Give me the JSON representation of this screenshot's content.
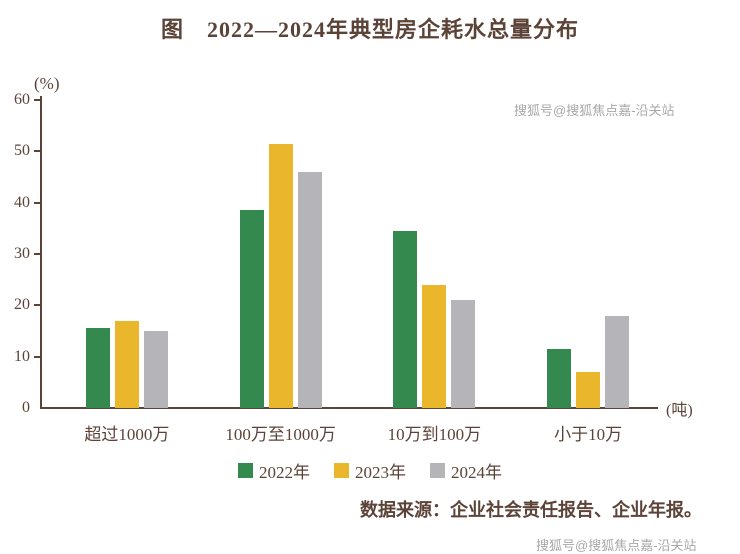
{
  "title": "图　2022—2024年典型房企耗水总量分布",
  "chart_data": {
    "type": "bar",
    "categories": [
      "超过1000万",
      "100万至1000万",
      "10万到100万",
      "小于10万"
    ],
    "series": [
      {
        "name": "2022年",
        "color": "#348a4e",
        "values": [
          15.5,
          38.5,
          34.5,
          11.5
        ]
      },
      {
        "name": "2023年",
        "color": "#eab62c",
        "values": [
          17,
          51.5,
          24,
          7
        ]
      },
      {
        "name": "2024年",
        "color": "#b5b4b8",
        "values": [
          15,
          46,
          21,
          18
        ]
      }
    ],
    "title": "图　2022—2024年典型房企耗水总量分布",
    "ylabel": "(%)",
    "xunit": "(吨)",
    "ylim": [
      0,
      60
    ],
    "yticks": [
      0,
      10,
      20,
      30,
      40,
      50,
      60
    ],
    "legend_position": "bottom",
    "grid": false
  },
  "source": "数据来源：企业社会责任报告、企业年报。",
  "watermark_top": "搜狐号@搜狐焦点嘉-沿关站",
  "watermark_bottom": "搜狐号@搜狐焦点嘉-沿关站"
}
